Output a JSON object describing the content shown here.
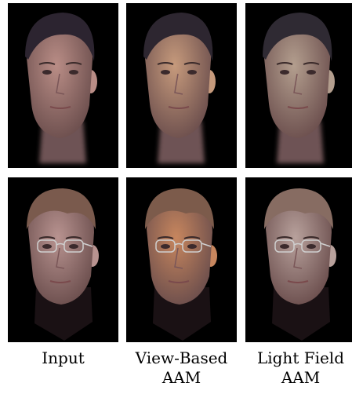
{
  "captions": [
    {
      "line1": "Input",
      "line2": ""
    },
    {
      "line1": "View-Based",
      "line2": "AAM"
    },
    {
      "line1": "Light Field",
      "line2": "AAM"
    }
  ],
  "images": [
    {
      "row": 0,
      "column": "input",
      "subject": "man face, no glasses",
      "skin": "#b98d86",
      "hair": "#2c2430",
      "glasses": false
    },
    {
      "row": 0,
      "column": "view-based-aam",
      "subject": "man face, no glasses",
      "skin": "#c69a7c",
      "hair": "#2d2630",
      "glasses": false
    },
    {
      "row": 0,
      "column": "light-field-aam",
      "subject": "man face, no glasses",
      "skin": "#b39e8e",
      "hair": "#2f2a33",
      "glasses": false
    },
    {
      "row": 1,
      "column": "input",
      "subject": "man face with glasses",
      "skin": "#b89390",
      "hair": "#7a5a4d",
      "glasses": true
    },
    {
      "row": 1,
      "column": "view-based-aam",
      "subject": "man face with glasses",
      "skin": "#c7865e",
      "hair": "#7c5b4b",
      "glasses": true
    },
    {
      "row": 1,
      "column": "light-field-aam",
      "subject": "man face with glasses",
      "skin": "#b8a19c",
      "hair": "#876c62",
      "glasses": true
    }
  ]
}
